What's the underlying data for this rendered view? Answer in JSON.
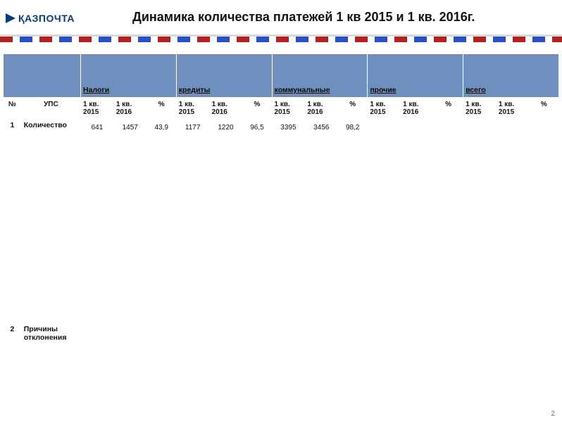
{
  "header": {
    "logo_text": "ҚАЗПОЧТА",
    "title": "Динамика количества платежей  1 кв 2015 и 1 кв. 2016г."
  },
  "table": {
    "groups": [
      "Налоги",
      "кредиты",
      "коммунальные",
      "прочие",
      "всего"
    ],
    "sub_headers": {
      "num": "№",
      "ups": "УПС",
      "q1_2015": "1 кв. 2015",
      "q1_2016": "1 кв. 2016",
      "pct": "%",
      "q1_2015b": "1 кв. 2015"
    },
    "rows": [
      {
        "num": "1",
        "label": "Количество",
        "cells": [
          "641",
          "1457",
          "43,9",
          "1177",
          "1220",
          "96,5",
          "3395",
          "3456",
          "98,2",
          "",
          "",
          "",
          "",
          "",
          ""
        ]
      },
      {
        "num": "2",
        "label": "Причины отклонения",
        "cells": [
          "",
          "",
          "",
          "",
          "",
          "",
          "",
          "",
          "",
          "",
          "",
          "",
          "",
          "",
          ""
        ]
      }
    ]
  },
  "page_number": "2"
}
